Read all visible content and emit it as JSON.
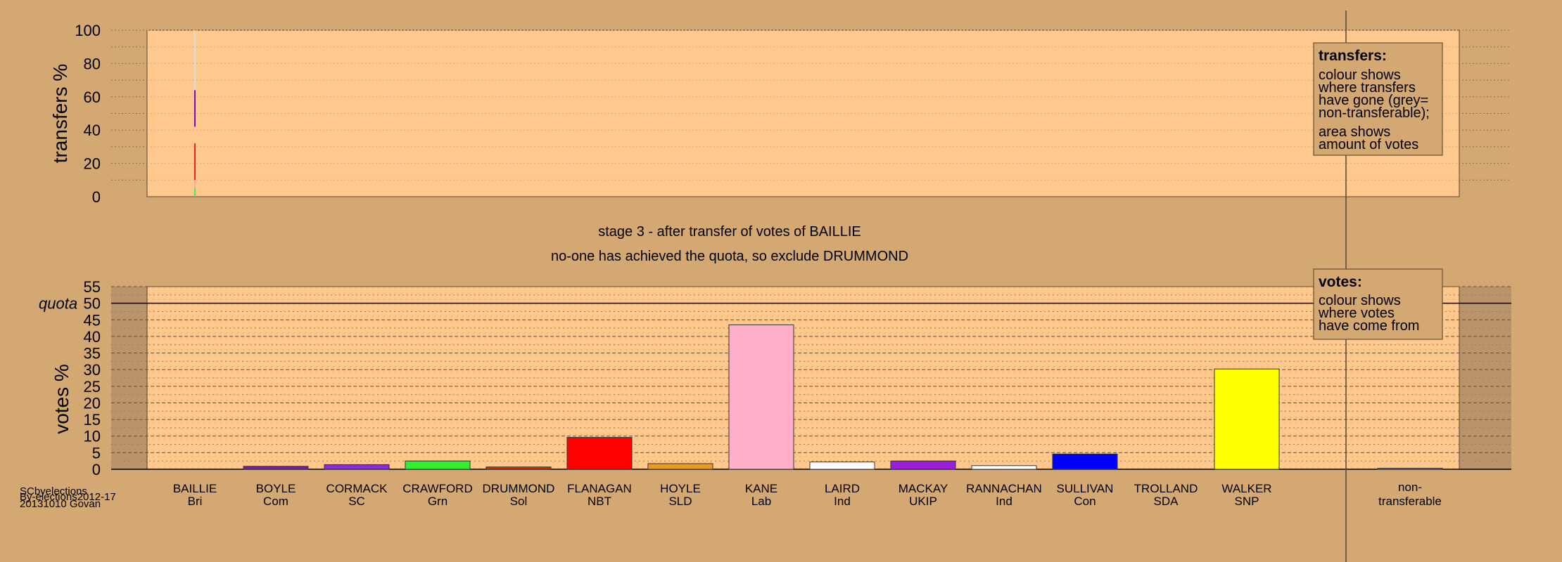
{
  "chart_data": [
    {
      "type": "bar",
      "title": "",
      "ylabel": "transfers %",
      "ylim": [
        0,
        100
      ],
      "yticks": [
        0,
        20,
        40,
        60,
        80,
        100
      ],
      "transfer_markers": [
        {
          "candidate": "BAILLIE",
          "segments": [
            {
              "from": 0,
              "to": 5,
              "color": "#44ee44"
            },
            {
              "from": 5,
              "to": 10,
              "color": "#ffaaaa"
            },
            {
              "from": 10,
              "to": 32,
              "color": "#ee2222"
            },
            {
              "from": 42,
              "to": 64,
              "color": "#8800cc"
            },
            {
              "from": 64,
              "to": 100,
              "color": "#dddddd"
            }
          ]
        }
      ],
      "legend": {
        "title": "transfers:",
        "lines_a": [
          "colour shows",
          "where transfers",
          "have gone (grey=",
          "non-transferable);"
        ],
        "lines_b": [
          "area shows",
          "amount of votes"
        ]
      }
    },
    {
      "type": "bar",
      "title": "",
      "ylabel": "votes %",
      "ylim": [
        0,
        55
      ],
      "yticks": [
        0,
        5,
        10,
        15,
        20,
        25,
        30,
        35,
        40,
        45,
        50,
        55
      ],
      "quota": 50,
      "quota_label": "quota",
      "categories": [
        {
          "name": "BAILLIE",
          "party": "Bri",
          "value": 0,
          "color": "#888888"
        },
        {
          "name": "BOYLE",
          "party": "Com",
          "value": 0.9,
          "color": "#7b1fa2"
        },
        {
          "name": "CORMACK",
          "party": "SC",
          "value": 1.4,
          "color": "#8a2be2"
        },
        {
          "name": "CRAWFORD",
          "party": "Grn",
          "value": 2.5,
          "color": "#33ee33"
        },
        {
          "name": "DRUMMOND",
          "party": "Sol",
          "value": 0.7,
          "color": "#cc3300"
        },
        {
          "name": "FLANAGAN",
          "party": "NBT",
          "value": 9.6,
          "color": "#ff0000"
        },
        {
          "name": "HOYLE",
          "party": "SLD",
          "value": 1.7,
          "color": "#ee9922"
        },
        {
          "name": "KANE",
          "party": "Lab",
          "value": 43.5,
          "color": "#ffb0c8"
        },
        {
          "name": "LAIRD",
          "party": "Ind",
          "value": 2.2,
          "color": "#ffffff"
        },
        {
          "name": "MACKAY",
          "party": "UKIP",
          "value": 2.5,
          "color": "#9a1ddb"
        },
        {
          "name": "RANNACHAN",
          "party": "Ind",
          "value": 1.1,
          "color": "#ffffff"
        },
        {
          "name": "SULLIVAN",
          "party": "Con",
          "value": 4.6,
          "color": "#0000ff"
        },
        {
          "name": "TROLLAND",
          "party": "SDA",
          "value": 0,
          "color": "#888888"
        },
        {
          "name": "WALKER",
          "party": "SNP",
          "value": 30.2,
          "color": "#ffff00"
        }
      ],
      "non_transferable": {
        "label_lines": [
          "non-",
          "transferable"
        ],
        "value": 0.3,
        "color": "#999999"
      },
      "legend": {
        "title": "votes:",
        "lines": [
          "colour shows",
          "where votes",
          "have come from"
        ]
      }
    }
  ],
  "captions": {
    "stage": "stage 3 - after transfer of votes of BAILLIE",
    "result": "no-one has achieved the quota, so exclude DRUMMOND"
  },
  "credit": {
    "line1": "SCbyelections",
    "line2": "By-elections2012-17",
    "line3": "20131010 Govan"
  }
}
